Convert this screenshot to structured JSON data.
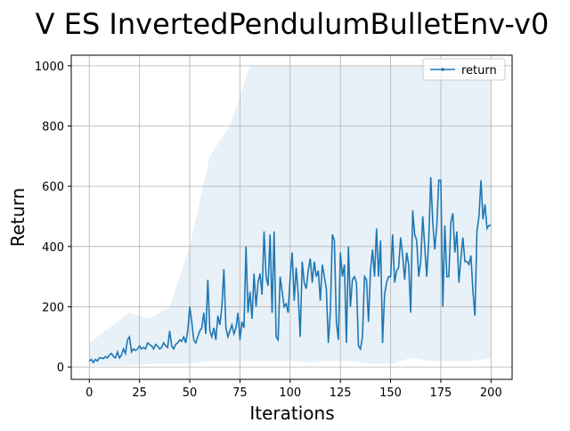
{
  "chart_data": {
    "type": "line",
    "title": "V ES InvertedPendulumBulletEnv-v0",
    "x_label": "Iterations",
    "y_label": "Return",
    "x": [
      0,
      1,
      2,
      3,
      4,
      5,
      6,
      7,
      8,
      9,
      10,
      11,
      12,
      13,
      14,
      15,
      16,
      17,
      18,
      19,
      20,
      21,
      22,
      23,
      24,
      25,
      26,
      27,
      28,
      29,
      30,
      31,
      32,
      33,
      34,
      35,
      36,
      37,
      38,
      39,
      40,
      41,
      42,
      43,
      44,
      45,
      46,
      47,
      48,
      49,
      50,
      51,
      52,
      53,
      54,
      55,
      56,
      57,
      58,
      59,
      60,
      61,
      62,
      63,
      64,
      65,
      66,
      67,
      68,
      69,
      70,
      71,
      72,
      73,
      74,
      75,
      76,
      77,
      78,
      79,
      80,
      81,
      82,
      83,
      84,
      85,
      86,
      87,
      88,
      89,
      90,
      91,
      92,
      93,
      94,
      95,
      96,
      97,
      98,
      99,
      100,
      101,
      102,
      103,
      104,
      105,
      106,
      107,
      108,
      109,
      110,
      111,
      112,
      113,
      114,
      115,
      116,
      117,
      118,
      119,
      120,
      121,
      122,
      123,
      124,
      125,
      126,
      127,
      128,
      129,
      130,
      131,
      132,
      133,
      134,
      135,
      136,
      137,
      138,
      139,
      140,
      141,
      142,
      143,
      144,
      145,
      146,
      147,
      148,
      149,
      150,
      151,
      152,
      153,
      154,
      155,
      156,
      157,
      158,
      159,
      160,
      161,
      162,
      163,
      164,
      165,
      166,
      167,
      168,
      169,
      170,
      171,
      172,
      173,
      174,
      175,
      176,
      177,
      178,
      179,
      180,
      181,
      182,
      183,
      184,
      185,
      186,
      187,
      188,
      189,
      190,
      191,
      192,
      193,
      194,
      195,
      196,
      197,
      198,
      199,
      200
    ],
    "series": [
      {
        "name": "return",
        "color": "#1f77b4",
        "values": [
          20,
          25,
          15,
          25,
          20,
          30,
          30,
          28,
          35,
          30,
          40,
          45,
          35,
          30,
          50,
          30,
          40,
          60,
          45,
          90,
          100,
          50,
          60,
          55,
          60,
          70,
          60,
          65,
          60,
          80,
          75,
          70,
          60,
          75,
          70,
          60,
          65,
          80,
          70,
          65,
          120,
          70,
          60,
          75,
          80,
          90,
          85,
          100,
          80,
          120,
          200,
          150,
          90,
          80,
          100,
          120,
          130,
          180,
          110,
          290,
          120,
          100,
          130,
          90,
          170,
          140,
          200,
          325,
          130,
          100,
          120,
          140,
          110,
          130,
          180,
          90,
          150,
          130,
          400,
          180,
          250,
          160,
          310,
          200,
          280,
          310,
          240,
          450,
          300,
          270,
          440,
          180,
          450,
          100,
          90,
          300,
          250,
          200,
          210,
          180,
          300,
          380,
          220,
          330,
          240,
          100,
          350,
          280,
          260,
          320,
          360,
          280,
          350,
          300,
          320,
          220,
          340,
          300,
          260,
          80,
          180,
          440,
          420,
          150,
          90,
          380,
          300,
          340,
          80,
          400,
          200,
          290,
          300,
          280,
          70,
          60,
          100,
          300,
          290,
          150,
          320,
          390,
          300,
          460,
          300,
          420,
          80,
          240,
          280,
          300,
          300,
          440,
          280,
          320,
          330,
          430,
          370,
          290,
          380,
          340,
          180,
          520,
          440,
          420,
          300,
          350,
          500,
          400,
          300,
          420,
          630,
          480,
          390,
          470,
          620,
          620,
          200,
          470,
          300,
          300,
          480,
          510,
          380,
          450,
          280,
          360,
          430,
          350,
          350,
          340,
          370,
          250,
          170,
          450,
          500,
          620,
          490,
          540,
          460,
          470,
          470
        ]
      }
    ],
    "band": {
      "color": "#1f77b4",
      "x": [
        0,
        10,
        20,
        30,
        40,
        50,
        60,
        70,
        80,
        90,
        100,
        110,
        120,
        130,
        140,
        150,
        160,
        170,
        180,
        190,
        200
      ],
      "lower": [
        5,
        5,
        5,
        10,
        10,
        10,
        20,
        20,
        20,
        20,
        20,
        15,
        20,
        20,
        10,
        10,
        30,
        20,
        20,
        20,
        30
      ],
      "upper": [
        80,
        130,
        180,
        160,
        200,
        400,
        700,
        800,
        1000,
        1000,
        1000,
        1000,
        1000,
        1000,
        1000,
        1000,
        1000,
        1000,
        1000,
        1000,
        1000
      ]
    },
    "xlim": [
      -9,
      210.5
    ],
    "ylim": [
      -41,
      1035
    ],
    "xticks": [
      0,
      25,
      50,
      75,
      100,
      125,
      150,
      175,
      200
    ],
    "yticks": [
      0,
      200,
      400,
      600,
      800,
      1000
    ],
    "grid": true,
    "legend": "upper right"
  }
}
